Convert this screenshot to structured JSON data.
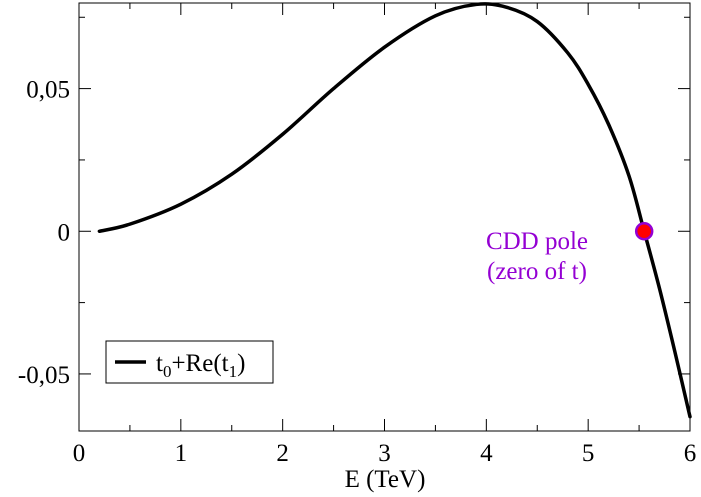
{
  "chart_data": {
    "type": "line",
    "title": "",
    "xlabel": "E (TeV)",
    "ylabel": "",
    "xlim": [
      0,
      6
    ],
    "ylim": [
      -0.07,
      0.08
    ],
    "x_ticks": [
      0,
      1,
      2,
      3,
      4,
      5,
      6
    ],
    "x_tick_labels": [
      "0",
      "1",
      "2",
      "3",
      "4",
      "5",
      "6"
    ],
    "y_ticks": [
      -0.05,
      0,
      0.05
    ],
    "y_tick_labels": [
      "-0,05",
      "0",
      "0,05"
    ],
    "grid": false,
    "legend_placement": "bottom-left",
    "legend": {
      "base": "t",
      "sub0": "0",
      "middle": "+Re(t",
      "sub1": "1",
      "end": ")"
    },
    "series": [
      {
        "color": "#000000",
        "x": [
          0.2,
          0.5,
          1.0,
          1.5,
          2.0,
          2.5,
          3.0,
          3.5,
          3.9,
          4.2,
          4.5,
          4.8,
          5.0,
          5.2,
          5.4,
          5.55,
          5.7,
          5.85,
          6.0
        ],
        "y": [
          0.0,
          0.0025,
          0.0095,
          0.02,
          0.034,
          0.05,
          0.0645,
          0.0755,
          0.0795,
          0.0785,
          0.0735,
          0.0625,
          0.0515,
          0.0375,
          0.0195,
          0.0,
          -0.02,
          -0.042,
          -0.065
        ]
      }
    ],
    "annotations": [
      {
        "text_line1": "CDD pole",
        "text_line2": "(zero of t)",
        "color": "#9400d3"
      }
    ],
    "marker": {
      "x": 5.55,
      "y": 0.0,
      "fill": "#ff0000",
      "stroke": "#9400d3"
    }
  }
}
